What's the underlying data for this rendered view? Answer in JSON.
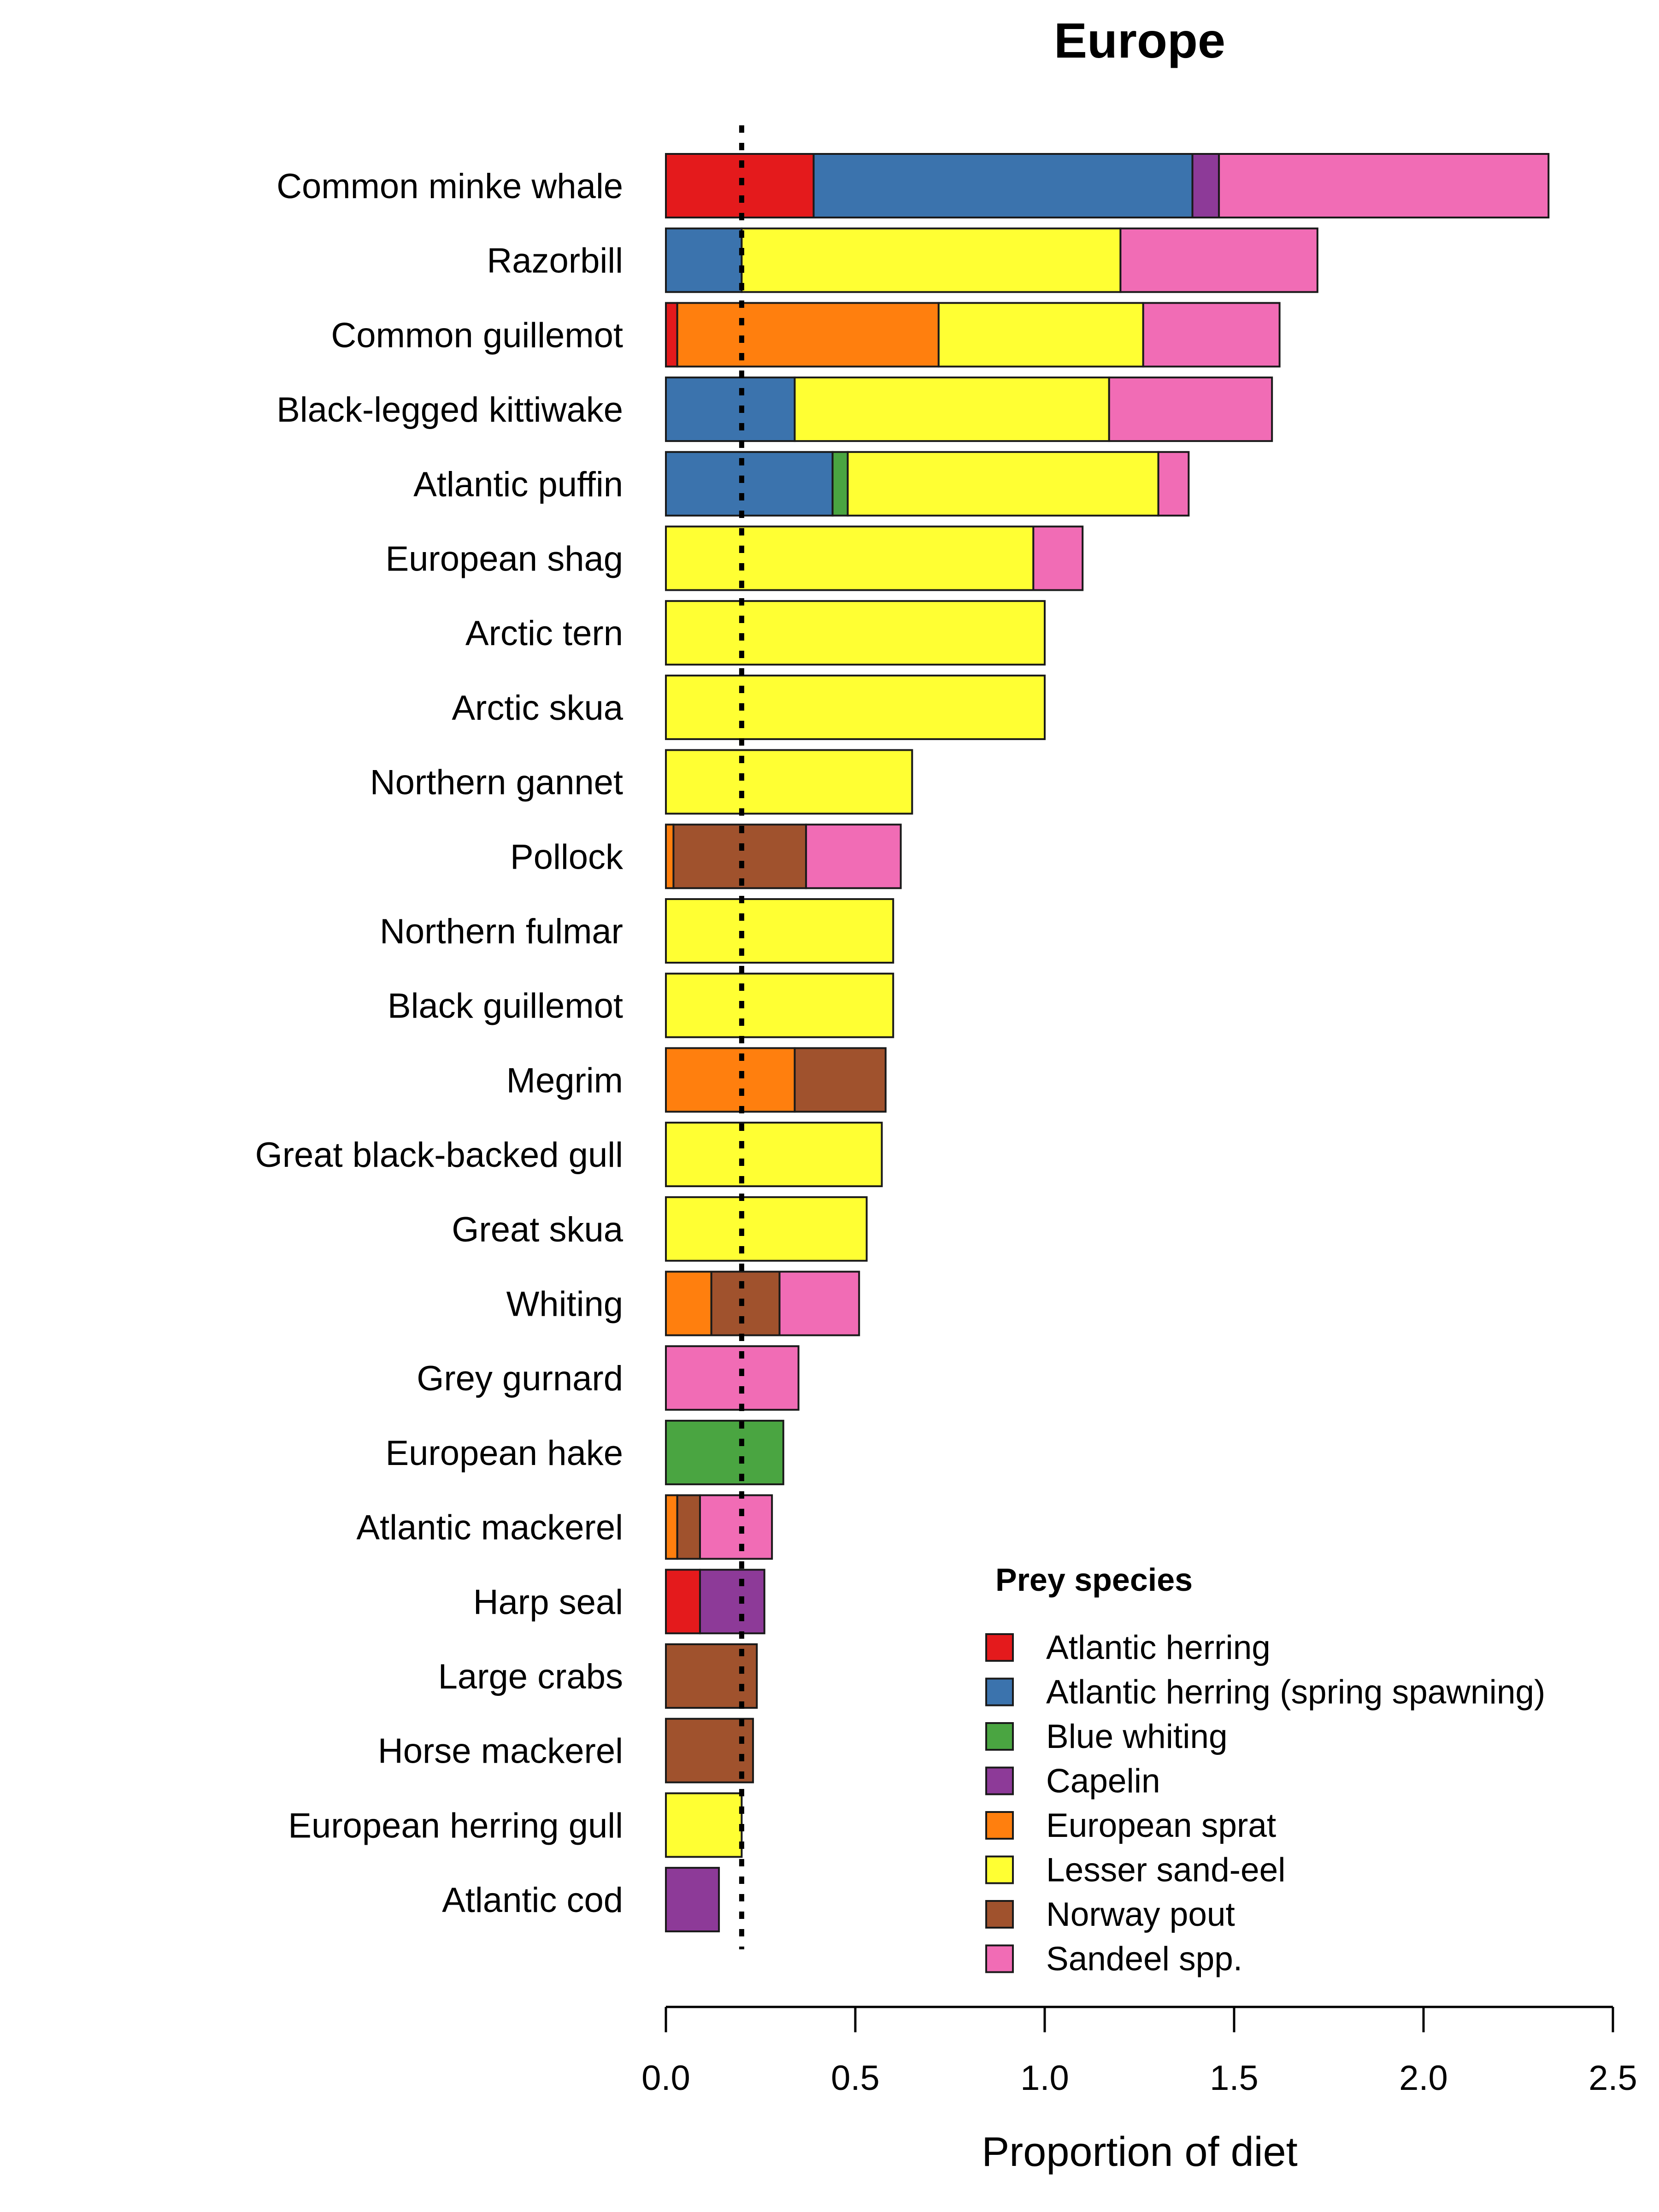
{
  "chart_data": {
    "type": "bar",
    "orientation": "horizontal",
    "stacked": true,
    "title": "Europe",
    "xlabel": "Proportion of diet",
    "ylabel": "",
    "xlim": [
      0,
      2.5
    ],
    "xticks": [
      "0.0",
      "0.5",
      "1.0",
      "1.5",
      "2.0",
      "2.5"
    ],
    "xtick_values": [
      0,
      0.5,
      1.0,
      1.5,
      2.0,
      2.5
    ],
    "reference_line": {
      "x": 0.2,
      "style": "dotted"
    },
    "categories": [
      "Common minke whale",
      "Razorbill",
      "Common guillemot",
      "Black-legged kittiwake",
      "Atlantic puffin",
      "European shag",
      "Arctic tern",
      "Arctic skua",
      "Northern gannet",
      "Pollock",
      "Northern fulmar",
      "Black guillemot",
      "Megrim",
      "Great black-backed gull",
      "Great skua",
      "Whiting",
      "Grey gurnard",
      "European hake",
      "Atlantic mackerel",
      "Harp seal",
      "Large crabs",
      "Horse mackerel",
      "European herring gull",
      "Atlantic cod"
    ],
    "series": [
      {
        "name": "Atlantic herring",
        "color": "#e41a1c",
        "values": [
          0.39,
          0,
          0.03,
          0,
          0,
          0,
          0,
          0,
          0,
          0,
          0,
          0,
          0,
          0,
          0,
          0,
          0,
          0,
          0,
          0.09,
          0,
          0,
          0,
          0
        ]
      },
      {
        "name": "Atlantic herring (spring spawning)",
        "color": "#3b73ad",
        "values": [
          1.0,
          0.2,
          0,
          0.34,
          0.44,
          0,
          0,
          0,
          0,
          0,
          0,
          0,
          0,
          0,
          0,
          0,
          0,
          0,
          0,
          0,
          0,
          0,
          0,
          0
        ]
      },
      {
        "name": "Blue whiting",
        "color": "#4aa541",
        "values": [
          0,
          0,
          0,
          0,
          0.04,
          0,
          0,
          0,
          0,
          0,
          0,
          0,
          0,
          0,
          0,
          0,
          0,
          0.31,
          0,
          0,
          0,
          0,
          0,
          0
        ]
      },
      {
        "name": "Capelin",
        "color": "#8d3a98",
        "values": [
          0.07,
          0,
          0,
          0,
          0,
          0,
          0,
          0,
          0,
          0,
          0,
          0,
          0,
          0,
          0,
          0,
          0,
          0,
          0,
          0.17,
          0,
          0,
          0,
          0.14
        ]
      },
      {
        "name": "European sprat",
        "color": "#ff7f0e",
        "values": [
          0,
          0,
          0.69,
          0,
          0,
          0,
          0,
          0,
          0,
          0.02,
          0,
          0,
          0.34,
          0,
          0,
          0.12,
          0,
          0,
          0.03,
          0,
          0,
          0,
          0,
          0
        ]
      },
      {
        "name": "Lesser sand-eel",
        "color": "#ffff33",
        "values": [
          0,
          1.0,
          0.54,
          0.83,
          0.82,
          0.97,
          1.0,
          1.0,
          0.65,
          0,
          0.6,
          0.6,
          0,
          0.57,
          0.53,
          0,
          0,
          0,
          0,
          0,
          0,
          0,
          0.2,
          0
        ]
      },
      {
        "name": "Norway pout",
        "color": "#a0522d",
        "values": [
          0,
          0,
          0,
          0,
          0,
          0,
          0,
          0,
          0,
          0.35,
          0,
          0,
          0.24,
          0,
          0,
          0.18,
          0,
          0,
          0.06,
          0,
          0.24,
          0.23,
          0,
          0
        ]
      },
      {
        "name": "Sandeel spp.",
        "color": "#f16cb5",
        "values": [
          0.87,
          0.52,
          0.36,
          0.43,
          0.08,
          0.13,
          0,
          0,
          0,
          0.25,
          0,
          0,
          0,
          0,
          0,
          0.21,
          0.35,
          0,
          0.19,
          0,
          0,
          0,
          0,
          0
        ]
      }
    ],
    "legend": {
      "title": "Prey species",
      "placement": "bottom-right"
    }
  }
}
